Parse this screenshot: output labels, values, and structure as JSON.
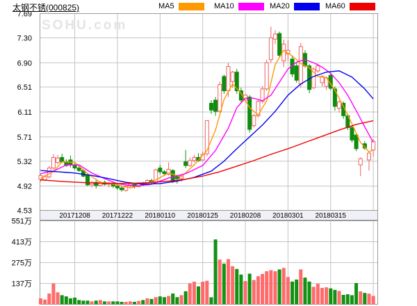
{
  "header": {
    "title": "太钢不锈",
    "code": "(000825)",
    "legend": [
      {
        "label": "MA5",
        "color": "#ff9900"
      },
      {
        "label": "MA10",
        "color": "#ff00ff"
      },
      {
        "label": "MA20",
        "color": "#0000ee"
      },
      {
        "label": "MA60",
        "color": "#ee0000"
      }
    ]
  },
  "watermark": "SOHU.com",
  "chart_data": {
    "type": "candlestick",
    "symbol": "太钢不锈 (000825)",
    "price_axis": {
      "labels": [
        "7.69",
        "7.30",
        "6.90",
        "6.51",
        "6.11",
        "5.71",
        "5.32",
        "4.92",
        "4.53"
      ],
      "values": [
        7.69,
        7.3,
        6.9,
        6.51,
        6.11,
        5.71,
        5.32,
        4.92,
        4.53
      ],
      "ylim": [
        4.53,
        7.69
      ]
    },
    "volume_axis": {
      "labels": [
        "551万",
        "413万",
        "275万",
        "137万"
      ],
      "values": [
        551,
        413,
        275,
        137
      ],
      "max": 551,
      "unit": "万"
    },
    "x_ticks": {
      "labels": [
        "20171208",
        "20171222",
        "20180110",
        "20180125",
        "20180208",
        "20180301",
        "20180315"
      ],
      "indices": [
        8,
        18,
        28,
        38,
        48,
        58,
        68
      ]
    },
    "candles": [
      [
        5.03,
        5.12,
        4.99,
        5.09,
        39
      ],
      [
        5.02,
        5.1,
        5.0,
        5.07,
        31
      ],
      [
        5.07,
        5.24,
        5.04,
        5.21,
        71
      ],
      [
        5.21,
        5.43,
        5.18,
        5.38,
        138
      ],
      [
        5.3,
        5.42,
        5.27,
        5.37,
        79
      ],
      [
        5.38,
        5.44,
        5.29,
        5.31,
        60
      ],
      [
        5.31,
        5.35,
        5.23,
        5.25,
        52
      ],
      [
        5.34,
        5.41,
        5.22,
        5.26,
        39
      ],
      [
        5.26,
        5.29,
        5.18,
        5.21,
        44
      ],
      [
        5.21,
        5.25,
        5.15,
        5.17,
        28
      ],
      [
        5.17,
        5.19,
        5.06,
        5.08,
        24
      ],
      [
        5.09,
        5.11,
        4.92,
        4.94,
        24
      ],
      [
        4.94,
        5.0,
        4.9,
        4.98,
        19
      ],
      [
        4.98,
        5.02,
        4.88,
        4.93,
        24
      ],
      [
        4.93,
        5.0,
        4.91,
        4.98,
        28
      ],
      [
        4.98,
        5.01,
        4.93,
        4.95,
        19
      ],
      [
        4.95,
        4.99,
        4.9,
        4.97,
        19
      ],
      [
        4.97,
        4.98,
        4.89,
        4.92,
        19
      ],
      [
        4.92,
        4.96,
        4.86,
        4.89,
        19
      ],
      [
        4.89,
        4.92,
        4.83,
        4.86,
        16
      ],
      [
        4.85,
        4.94,
        4.83,
        4.92,
        16
      ],
      [
        4.92,
        4.97,
        4.89,
        4.95,
        19
      ],
      [
        4.95,
        4.97,
        4.88,
        4.91,
        16
      ],
      [
        4.91,
        4.98,
        4.9,
        4.97,
        22
      ],
      [
        4.97,
        4.99,
        4.92,
        4.94,
        28
      ],
      [
        4.94,
        5.03,
        4.93,
        5.01,
        39
      ],
      [
        5.01,
        5.04,
        4.96,
        4.98,
        35
      ],
      [
        4.98,
        5.2,
        4.97,
        5.18,
        47
      ],
      [
        5.21,
        5.26,
        5.11,
        5.15,
        52
      ],
      [
        5.15,
        5.18,
        5.08,
        5.12,
        47
      ],
      [
        5.11,
        5.3,
        5.09,
        5.19,
        55
      ],
      [
        5.17,
        5.19,
        4.97,
        5.0,
        71
      ],
      [
        5.07,
        5.09,
        4.96,
        5.04,
        47
      ],
      [
        5.04,
        5.11,
        4.99,
        5.09,
        60
      ],
      [
        5.31,
        5.5,
        5.21,
        5.25,
        86
      ],
      [
        5.25,
        5.38,
        5.23,
        5.33,
        138
      ],
      [
        5.33,
        5.42,
        5.3,
        5.38,
        149
      ],
      [
        5.38,
        5.45,
        5.31,
        5.33,
        118
      ],
      [
        5.34,
        5.47,
        5.32,
        5.43,
        149
      ],
      [
        5.44,
        5.97,
        5.4,
        5.97,
        155
      ],
      [
        6.25,
        6.3,
        6.08,
        6.14,
        46
      ],
      [
        6.3,
        6.35,
        6.05,
        6.12,
        428
      ],
      [
        6.12,
        6.6,
        6.1,
        6.55,
        295
      ],
      [
        6.68,
        6.71,
        6.4,
        6.45,
        268
      ],
      [
        6.45,
        6.9,
        6.35,
        6.84,
        298
      ],
      [
        6.6,
        6.77,
        6.5,
        6.75,
        251
      ],
      [
        6.75,
        6.8,
        6.4,
        6.45,
        233
      ],
      [
        6.45,
        6.5,
        6.25,
        6.3,
        196
      ],
      [
        6.3,
        6.4,
        6.26,
        6.38,
        153
      ],
      [
        6.35,
        6.38,
        5.78,
        5.83,
        202
      ],
      [
        5.89,
        6.08,
        5.86,
        6.05,
        160
      ],
      [
        6.05,
        6.3,
        6.02,
        6.28,
        185
      ],
      [
        6.28,
        6.52,
        6.25,
        6.48,
        200
      ],
      [
        6.48,
        6.95,
        6.45,
        6.9,
        218
      ],
      [
        6.95,
        7.48,
        6.9,
        7.3,
        225
      ],
      [
        7.28,
        7.42,
        7.2,
        7.36,
        218
      ],
      [
        7.37,
        7.4,
        6.98,
        7.02,
        230
      ],
      [
        6.93,
        7.27,
        6.83,
        7.2,
        240
      ],
      [
        7.04,
        7.26,
        6.93,
        7.1,
        180
      ],
      [
        6.96,
        7.02,
        6.67,
        6.72,
        150
      ],
      [
        6.85,
        6.9,
        6.58,
        6.62,
        163
      ],
      [
        6.56,
        7.22,
        6.5,
        7.16,
        230
      ],
      [
        7.05,
        7.1,
        6.82,
        6.85,
        176
      ],
      [
        6.85,
        6.88,
        6.41,
        6.47,
        150
      ],
      [
        6.5,
        6.83,
        6.48,
        6.8,
        115
      ],
      [
        6.77,
        6.89,
        6.74,
        6.85,
        135
      ],
      [
        6.58,
        6.7,
        6.52,
        6.68,
        108
      ],
      [
        6.52,
        6.68,
        6.46,
        6.66,
        112
      ],
      [
        6.7,
        6.73,
        6.46,
        6.49,
        105
      ],
      [
        6.48,
        6.52,
        6.13,
        6.2,
        95
      ],
      [
        6.17,
        6.3,
        6.1,
        6.27,
        88
      ],
      [
        6.25,
        6.28,
        6.0,
        6.05,
        62
      ],
      [
        6.05,
        6.08,
        5.82,
        5.86,
        66
      ],
      [
        5.86,
        5.9,
        5.62,
        5.66,
        60
      ],
      [
        5.74,
        5.77,
        5.48,
        5.52,
        140
      ],
      [
        5.26,
        5.38,
        5.08,
        5.36,
        85
      ],
      [
        5.6,
        5.64,
        5.5,
        5.53,
        75
      ],
      [
        5.34,
        5.48,
        5.17,
        5.45,
        70
      ],
      [
        5.5,
        5.67,
        5.4,
        5.64,
        55
      ]
    ],
    "candle_format": [
      "open",
      "high",
      "low",
      "close",
      "volume_wan"
    ],
    "ma_lines": {
      "ma5": {
        "color": "#ff9900",
        "keyframes": [
          [
            0,
            5.05
          ],
          [
            3,
            5.15
          ],
          [
            5,
            5.31
          ],
          [
            8,
            5.3
          ],
          [
            11,
            5.12
          ],
          [
            14,
            4.98
          ],
          [
            18,
            4.94
          ],
          [
            21,
            4.89
          ],
          [
            24,
            4.94
          ],
          [
            27,
            5.02
          ],
          [
            30,
            5.13
          ],
          [
            33,
            5.07
          ],
          [
            36,
            5.26
          ],
          [
            39,
            5.49
          ],
          [
            41,
            5.82
          ],
          [
            43,
            6.31
          ],
          [
            45,
            6.56
          ],
          [
            47,
            6.41
          ],
          [
            49,
            6.18
          ],
          [
            51,
            6.06
          ],
          [
            53,
            6.29
          ],
          [
            55,
            6.87
          ],
          [
            57,
            7.1
          ],
          [
            59,
            7.01
          ],
          [
            61,
            6.89
          ],
          [
            63,
            6.82
          ],
          [
            65,
            6.68
          ],
          [
            67,
            6.66
          ],
          [
            69,
            6.46
          ],
          [
            71,
            6.2
          ],
          [
            73,
            5.92
          ],
          [
            75,
            5.62
          ],
          [
            77,
            5.47
          ],
          [
            78,
            5.5
          ]
        ]
      },
      "ma10": {
        "color": "#ff00ff",
        "keyframes": [
          [
            0,
            5.12
          ],
          [
            3,
            5.16
          ],
          [
            6,
            5.26
          ],
          [
            9,
            5.26
          ],
          [
            12,
            5.13
          ],
          [
            15,
            5.04
          ],
          [
            18,
            4.96
          ],
          [
            22,
            4.92
          ],
          [
            26,
            4.95
          ],
          [
            30,
            5.05
          ],
          [
            34,
            5.12
          ],
          [
            38,
            5.25
          ],
          [
            41,
            5.49
          ],
          [
            44,
            5.85
          ],
          [
            46,
            6.18
          ],
          [
            48,
            6.33
          ],
          [
            50,
            6.33
          ],
          [
            52,
            6.29
          ],
          [
            54,
            6.38
          ],
          [
            56,
            6.59
          ],
          [
            58,
            6.8
          ],
          [
            60,
            6.91
          ],
          [
            62,
            6.95
          ],
          [
            64,
            6.9
          ],
          [
            66,
            6.83
          ],
          [
            68,
            6.73
          ],
          [
            70,
            6.58
          ],
          [
            72,
            6.38
          ],
          [
            74,
            6.13
          ],
          [
            76,
            5.87
          ],
          [
            78,
            5.62
          ]
        ]
      },
      "ma20": {
        "color": "#0000ee",
        "keyframes": [
          [
            0,
            5.17
          ],
          [
            4,
            5.15
          ],
          [
            8,
            5.13
          ],
          [
            12,
            5.09
          ],
          [
            16,
            5.04
          ],
          [
            20,
            4.98
          ],
          [
            24,
            4.95
          ],
          [
            28,
            4.96
          ],
          [
            32,
            5.0
          ],
          [
            36,
            5.06
          ],
          [
            40,
            5.16
          ],
          [
            43,
            5.32
          ],
          [
            46,
            5.52
          ],
          [
            49,
            5.71
          ],
          [
            52,
            5.9
          ],
          [
            55,
            6.12
          ],
          [
            58,
            6.38
          ],
          [
            61,
            6.56
          ],
          [
            64,
            6.68
          ],
          [
            67,
            6.75
          ],
          [
            70,
            6.77
          ],
          [
            73,
            6.67
          ],
          [
            76,
            6.48
          ],
          [
            78,
            6.32
          ]
        ]
      },
      "ma60": {
        "color": "#ee0000",
        "keyframes": [
          [
            0,
            5.02
          ],
          [
            6,
            4.99
          ],
          [
            12,
            4.97
          ],
          [
            18,
            4.96
          ],
          [
            24,
            4.97
          ],
          [
            30,
            5.0
          ],
          [
            34,
            5.03
          ],
          [
            38,
            5.08
          ],
          [
            42,
            5.15
          ],
          [
            46,
            5.24
          ],
          [
            50,
            5.33
          ],
          [
            54,
            5.43
          ],
          [
            58,
            5.52
          ],
          [
            62,
            5.62
          ],
          [
            66,
            5.72
          ],
          [
            70,
            5.82
          ],
          [
            74,
            5.91
          ],
          [
            78,
            5.97
          ]
        ]
      }
    },
    "colors": {
      "candle_up": "#ef5f5f",
      "candle_up_fill": "#ffffff",
      "candle_down": "#0f8c0f",
      "volume_up": "#ff6b6b",
      "volume_down": "#129112",
      "grid": "#c3c3c3",
      "border": "#9a9a9a",
      "axis_strip_bg": "#f0f0f8",
      "axis_text": "#000000"
    },
    "grid": true,
    "legend_position": "top"
  }
}
